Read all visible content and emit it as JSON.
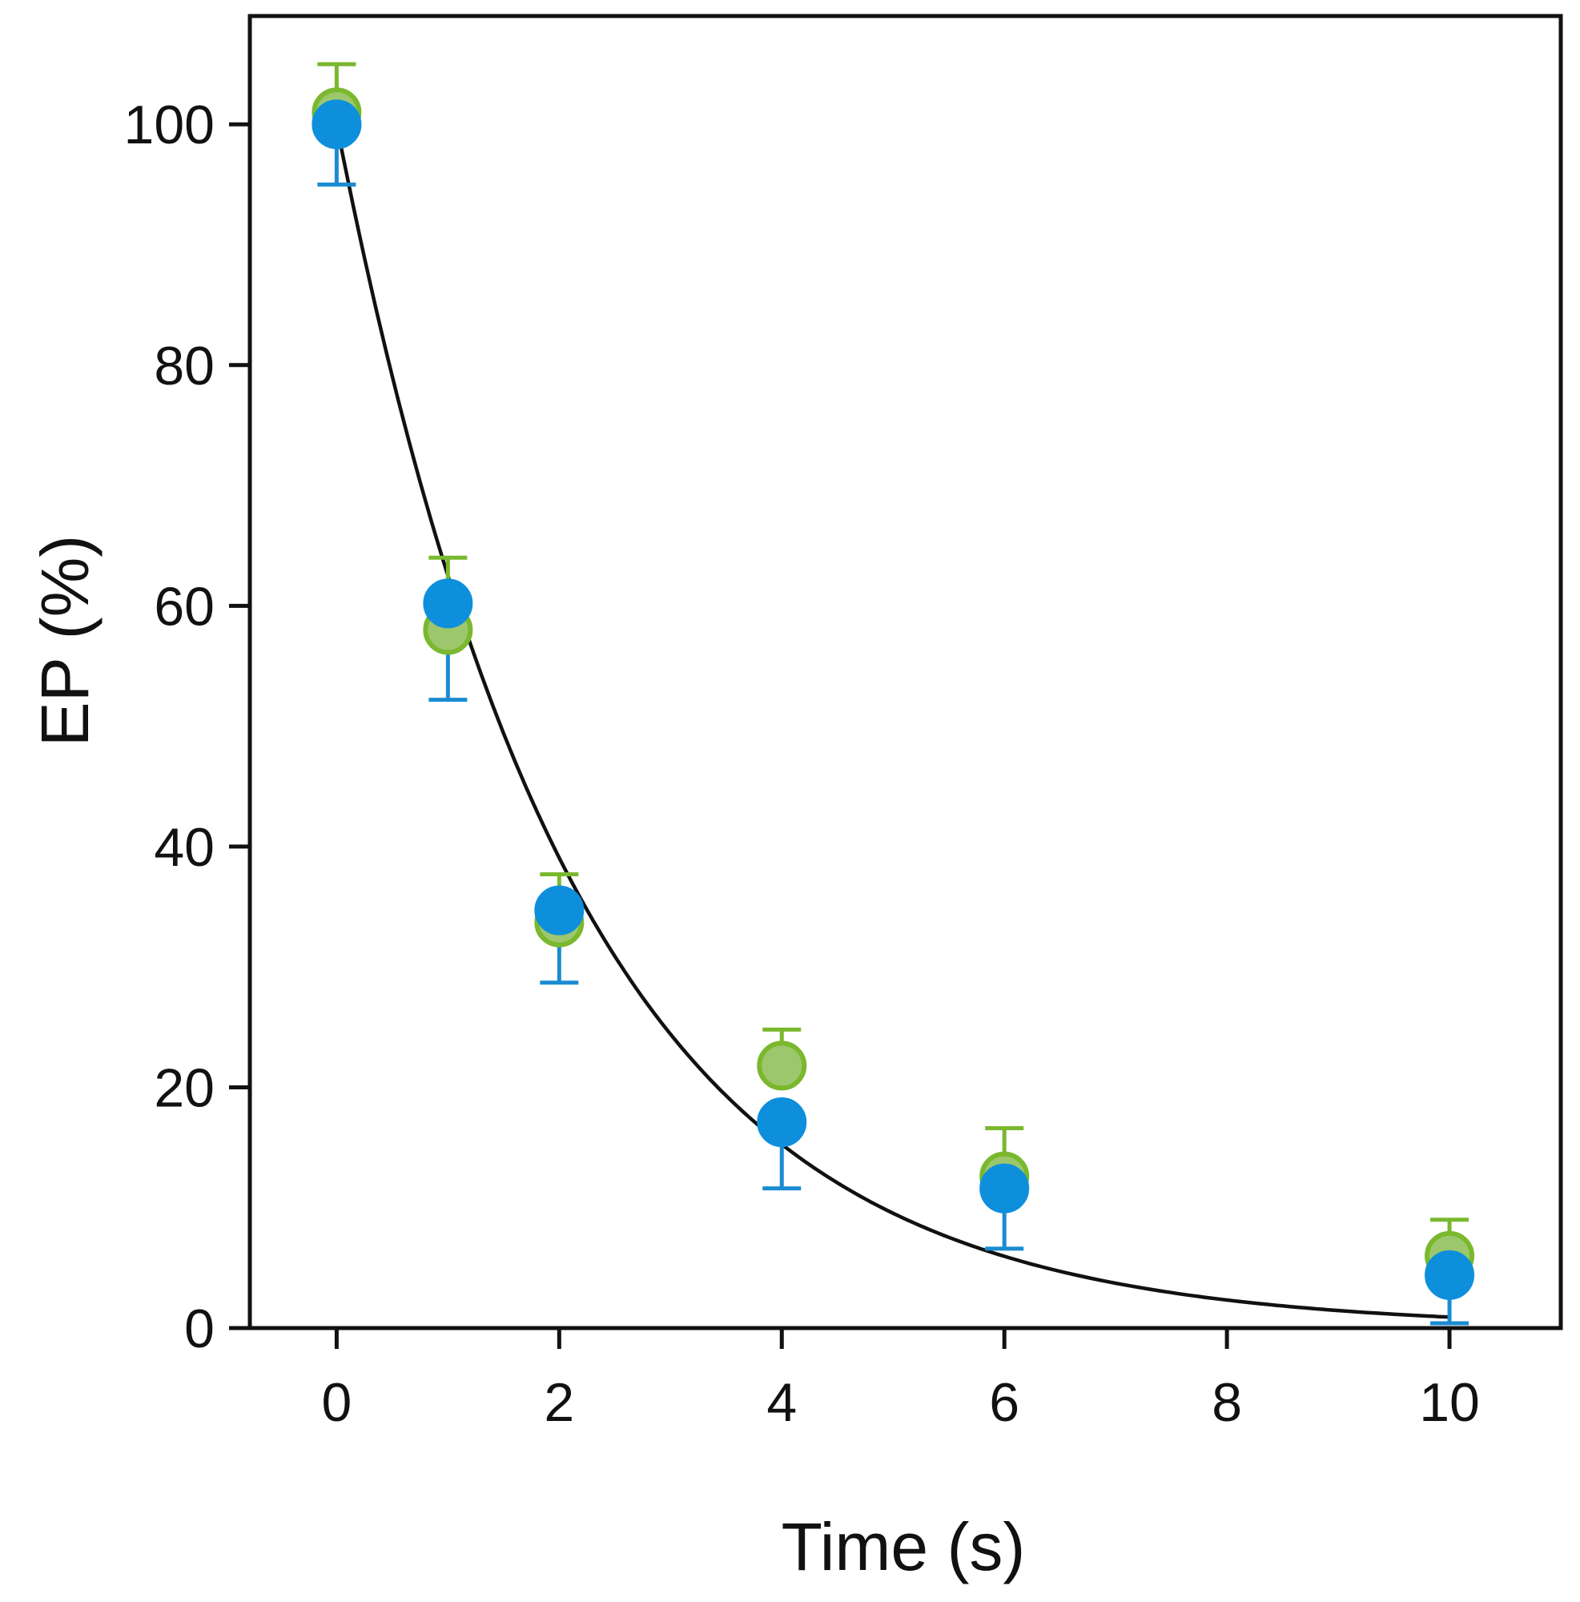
{
  "chart_data": {
    "type": "scatter",
    "xlabel": "Time (s)",
    "ylabel": "EP (%)",
    "xlim": [
      -0.78,
      11.0
    ],
    "ylim": [
      0,
      109
    ],
    "x_ticks": [
      "0",
      "2",
      "4",
      "6",
      "8",
      "10"
    ],
    "y_ticks": [
      "0",
      "20",
      "40",
      "60",
      "80",
      "100"
    ],
    "grid": false,
    "legend": "none",
    "series": [
      {
        "marker_color": "#9dc76c",
        "edge_color": "#7ab82e",
        "error_color": "#7ab82e",
        "error_direction": "up",
        "points": [
          {
            "x": 0,
            "y": 101,
            "err": 4
          },
          {
            "x": 1,
            "y": 58,
            "err": 6
          },
          {
            "x": 2,
            "y": 33.7,
            "err": 4
          },
          {
            "x": 4,
            "y": 21.8,
            "err": 3
          },
          {
            "x": 6,
            "y": 12.6,
            "err": 4
          },
          {
            "x": 10,
            "y": 6,
            "err": 3
          }
        ]
      },
      {
        "marker_color": "#0e8fdc",
        "edge_color": "#0e8fdc",
        "error_color": "#1a8bd2",
        "error_direction": "down",
        "points": [
          {
            "x": 0,
            "y": 100,
            "err": 5
          },
          {
            "x": 1,
            "y": 60.2,
            "err": 8
          },
          {
            "x": 2,
            "y": 34.7,
            "err": 6
          },
          {
            "x": 4,
            "y": 17.1,
            "err": 5.5
          },
          {
            "x": 6,
            "y": 11.6,
            "err": 5
          },
          {
            "x": 10,
            "y": 4.4,
            "err": 4
          }
        ]
      }
    ],
    "fit_curve": {
      "type": "exponential_decay",
      "amplitude": 100,
      "rate": 0.47,
      "x_range": [
        0,
        10
      ],
      "color": "#111111"
    }
  }
}
